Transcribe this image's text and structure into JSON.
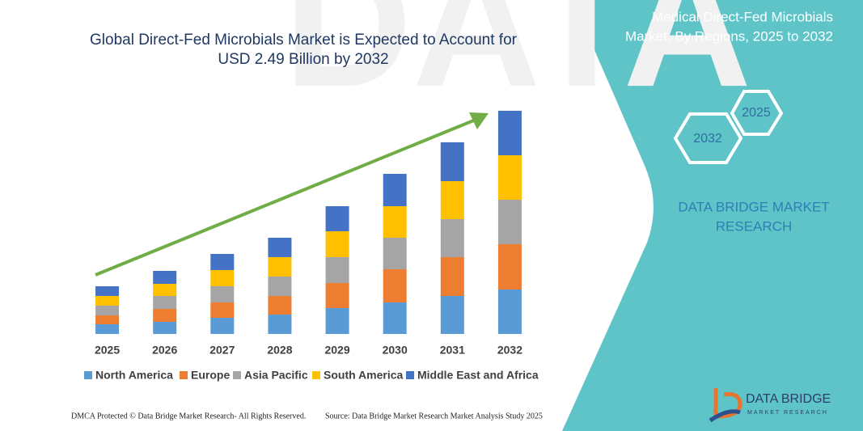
{
  "chart_data": {
    "type": "stacked-bar",
    "title": "Global Direct-Fed Microbials Market is Expected to Account for USD 2.49 Billion by 2032",
    "categories": [
      "2025",
      "2026",
      "2027",
      "2028",
      "2029",
      "2030",
      "2031",
      "2032"
    ],
    "series": [
      {
        "name": "North America",
        "color": "#5b9bd5",
        "values": [
          12,
          15,
          20,
          24,
          32,
          39,
          47,
          55
        ]
      },
      {
        "name": "Europe",
        "color": "#ed7d31",
        "values": [
          11,
          16,
          19,
          23,
          31,
          41,
          48,
          56
        ]
      },
      {
        "name": "Asia Pacific",
        "color": "#a5a5a5",
        "values": [
          12,
          16,
          20,
          24,
          32,
          39,
          47,
          55
        ]
      },
      {
        "name": "South America",
        "color": "#ffc000",
        "values": [
          12,
          15,
          20,
          24,
          32,
          39,
          47,
          55
        ]
      },
      {
        "name": "Middle East and Africa",
        "color": "#4472c4",
        "values": [
          12,
          16,
          20,
          24,
          31,
          40,
          48,
          55
        ]
      }
    ],
    "ylim": [
      0,
      280
    ]
  },
  "panel": {
    "title_line1": "Medical Direct-Fed Microbials",
    "title_line2": "Market, By Regions, 2025 to 2032",
    "hex_top": "2025",
    "hex_bottom": "2032",
    "brand_line1": "DATA BRIDGE MARKET",
    "brand_line2": "RESEARCH"
  },
  "logo": {
    "name": "DATA BRIDGE",
    "tagline": "MARKET RESEARCH"
  },
  "footer": {
    "left": "DMCA Protected © Data Bridge Market Research- All Rights Reserved.",
    "right": "Source: Data Bridge Market Research Market Analysis Study 2025"
  }
}
